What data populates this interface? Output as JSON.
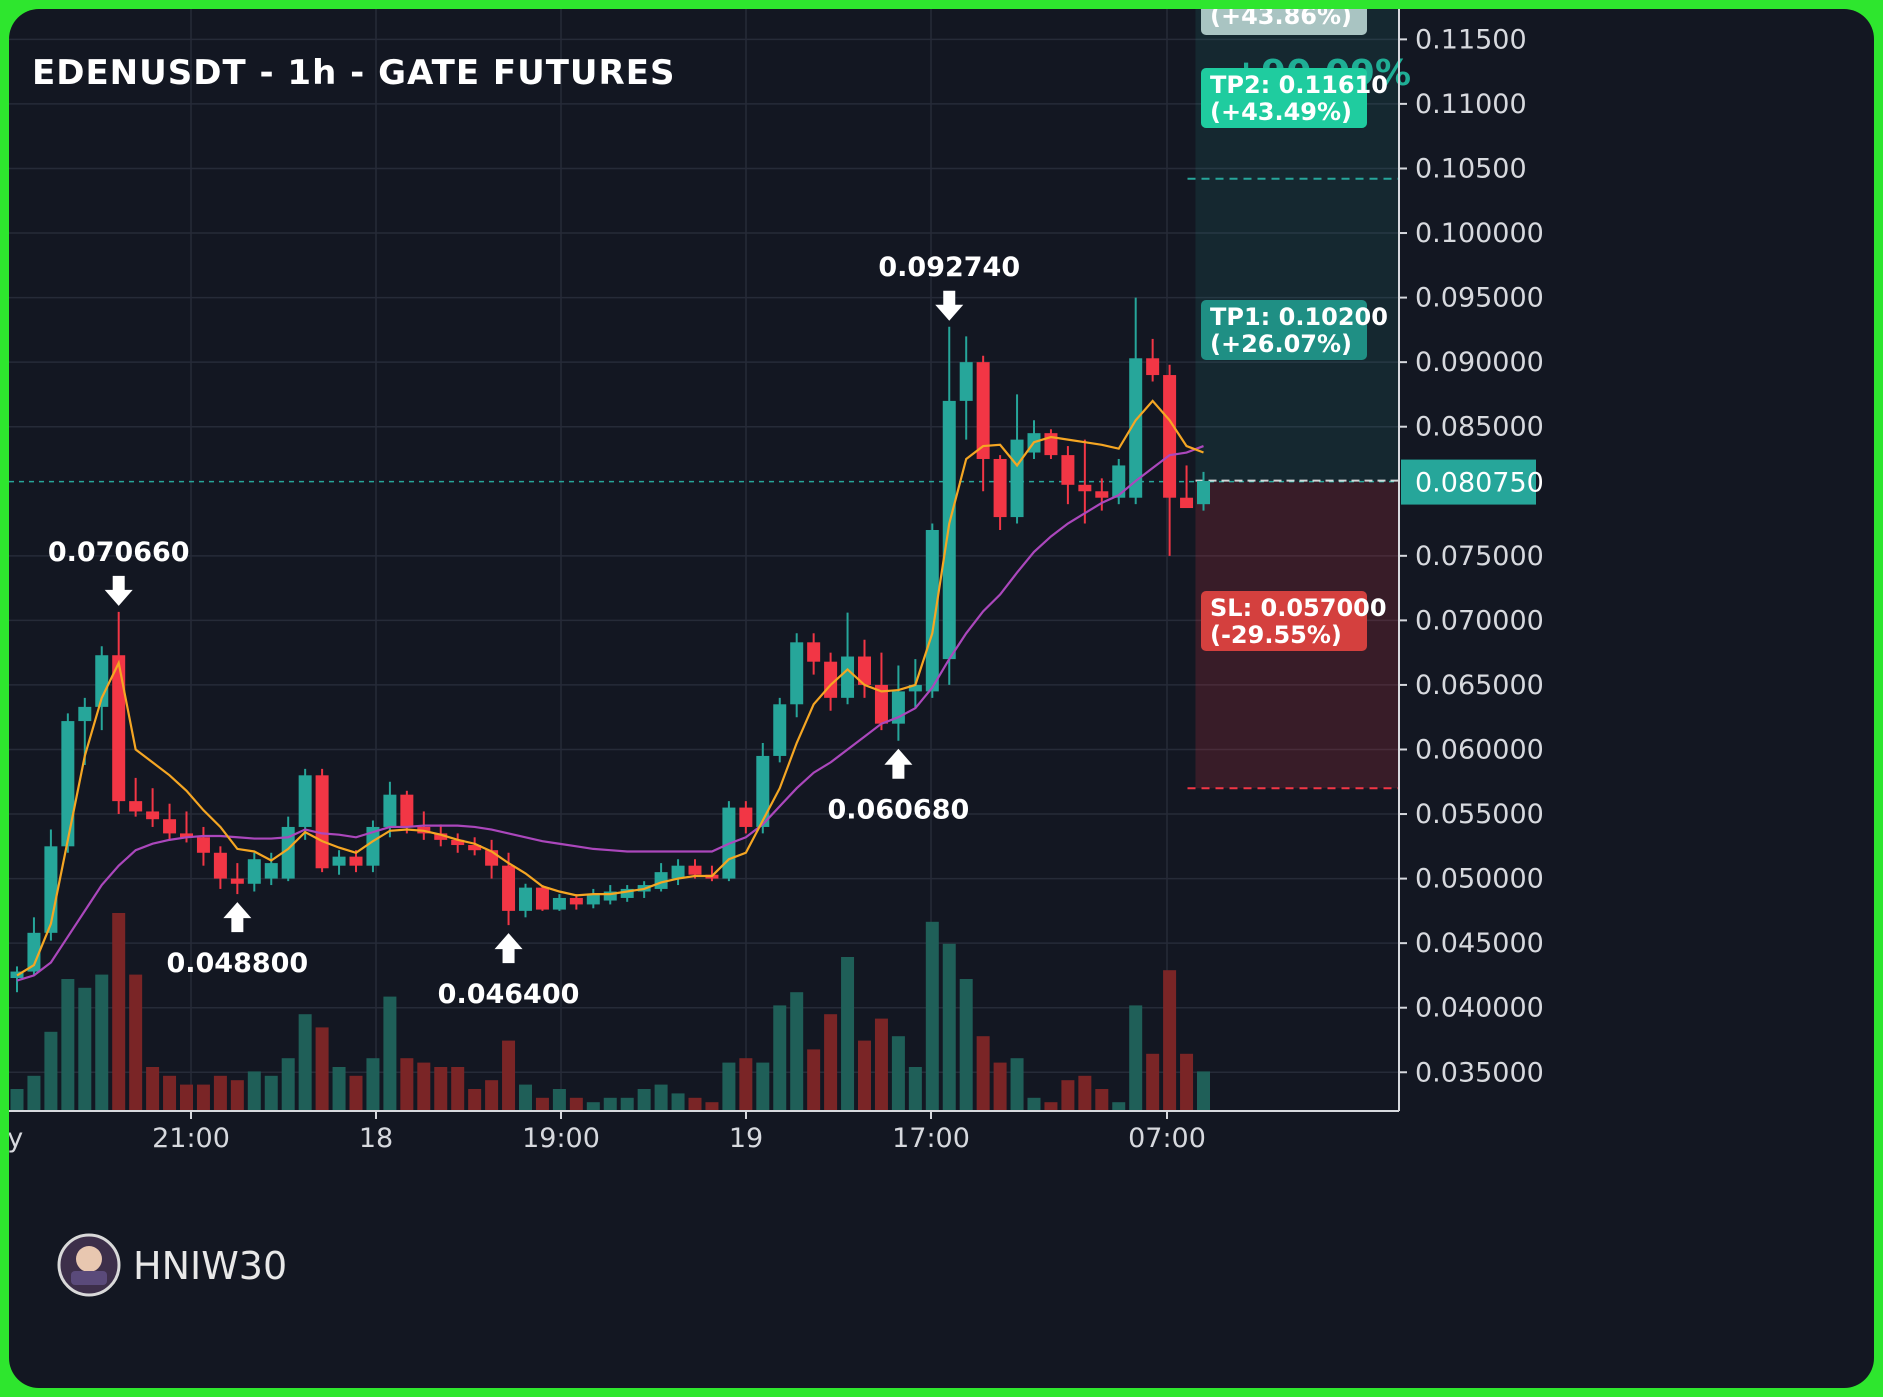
{
  "title": "EDENUSDT - 1h - GATE FUTURES",
  "watermark": "HNIW30",
  "colors": {
    "background": "#131722",
    "up": "#26a69a",
    "down": "#f23645",
    "ema_fast": "#f5a623",
    "ema_slow": "#ab47bc",
    "grid": "#262b38"
  },
  "current_price_label": "0.080750",
  "targets": [
    {
      "label": "(+43.86%)",
      "kind": "tp-partial"
    },
    {
      "label": "+90.09%",
      "kind": "tp-faded"
    },
    {
      "line1": "TP2: 0.11610",
      "line2": "(+43.49%)",
      "kind": "tp2"
    },
    {
      "line1": "TP1: 0.10200",
      "line2": "(+26.07%)",
      "kind": "tp1"
    },
    {
      "line1": "SL: 0.057000",
      "line2": "(-29.55%)",
      "kind": "sl"
    }
  ],
  "annotations": [
    {
      "label": "0.070660",
      "dir": "down",
      "candle": 6,
      "price": 0.07066
    },
    {
      "label": "0.048800",
      "dir": "up",
      "candle": 13,
      "price": 0.0488
    },
    {
      "label": "0.046400",
      "dir": "up",
      "candle": 29,
      "price": 0.0464
    },
    {
      "label": "0.092740",
      "dir": "down",
      "candle": 55,
      "price": 0.09274
    },
    {
      "label": "0.060680",
      "dir": "up",
      "candle": 52,
      "price": 0.06068
    }
  ],
  "chart_data": {
    "type": "candlestick",
    "title": "EDENUSDT - 1h - GATE FUTURES",
    "y_tick_labels": [
      "0.11500",
      "0.11000",
      "0.10500",
      "0.100000",
      "0.095000",
      "0.090000",
      "0.085000",
      "0.080750",
      "0.075000",
      "0.070000",
      "0.065000",
      "0.060000",
      "0.055000",
      "0.050000",
      "0.045000",
      "0.040000",
      "0.035000"
    ],
    "y_ticks": [
      0.115,
      0.11,
      0.105,
      0.1,
      0.095,
      0.09,
      0.085,
      0.075,
      0.07,
      0.065,
      0.06,
      0.055,
      0.05,
      0.045,
      0.04,
      0.035
    ],
    "x_tick_labels": [
      "ay",
      "21:00",
      "18",
      "19:00",
      "19",
      "17:00",
      "07:00"
    ],
    "ylim": [
      0.032,
      0.1165
    ],
    "grid": true,
    "levels": {
      "entry": 0.08075,
      "tp1": 0.102,
      "tp2": 0.1161,
      "sl": 0.057
    },
    "candles": [
      {
        "o": 0.0423,
        "h": 0.0432,
        "l": 0.0412,
        "c": 0.0428,
        "v": 5
      },
      {
        "o": 0.0428,
        "h": 0.047,
        "l": 0.0425,
        "c": 0.0458,
        "v": 8
      },
      {
        "o": 0.0458,
        "h": 0.0538,
        "l": 0.0452,
        "c": 0.0525,
        "v": 18
      },
      {
        "o": 0.0525,
        "h": 0.0628,
        "l": 0.052,
        "c": 0.0622,
        "v": 30
      },
      {
        "o": 0.0622,
        "h": 0.064,
        "l": 0.0588,
        "c": 0.0633,
        "v": 28
      },
      {
        "o": 0.0633,
        "h": 0.068,
        "l": 0.0615,
        "c": 0.0673,
        "v": 31
      },
      {
        "o": 0.0673,
        "h": 0.07066,
        "l": 0.055,
        "c": 0.056,
        "v": 45
      },
      {
        "o": 0.056,
        "h": 0.0578,
        "l": 0.0548,
        "c": 0.0552,
        "v": 31
      },
      {
        "o": 0.0552,
        "h": 0.057,
        "l": 0.054,
        "c": 0.0546,
        "v": 10
      },
      {
        "o": 0.0546,
        "h": 0.0558,
        "l": 0.053,
        "c": 0.0535,
        "v": 8
      },
      {
        "o": 0.0535,
        "h": 0.0552,
        "l": 0.0528,
        "c": 0.0532,
        "v": 6
      },
      {
        "o": 0.0532,
        "h": 0.054,
        "l": 0.051,
        "c": 0.052,
        "v": 6
      },
      {
        "o": 0.052,
        "h": 0.0525,
        "l": 0.0492,
        "c": 0.05,
        "v": 8
      },
      {
        "o": 0.05,
        "h": 0.0512,
        "l": 0.0488,
        "c": 0.0496,
        "v": 7
      },
      {
        "o": 0.0496,
        "h": 0.052,
        "l": 0.049,
        "c": 0.0515,
        "v": 9
      },
      {
        "o": 0.05,
        "h": 0.052,
        "l": 0.0495,
        "c": 0.0512,
        "v": 8
      },
      {
        "o": 0.05,
        "h": 0.0548,
        "l": 0.0498,
        "c": 0.054,
        "v": 12
      },
      {
        "o": 0.054,
        "h": 0.0585,
        "l": 0.053,
        "c": 0.058,
        "v": 22
      },
      {
        "o": 0.058,
        "h": 0.0585,
        "l": 0.0505,
        "c": 0.0508,
        "v": 19
      },
      {
        "o": 0.051,
        "h": 0.0522,
        "l": 0.0503,
        "c": 0.0517,
        "v": 10
      },
      {
        "o": 0.0517,
        "h": 0.0522,
        "l": 0.0505,
        "c": 0.051,
        "v": 8
      },
      {
        "o": 0.051,
        "h": 0.0545,
        "l": 0.0505,
        "c": 0.054,
        "v": 12
      },
      {
        "o": 0.054,
        "h": 0.0575,
        "l": 0.0532,
        "c": 0.0565,
        "v": 26
      },
      {
        "o": 0.0565,
        "h": 0.0568,
        "l": 0.0535,
        "c": 0.054,
        "v": 12
      },
      {
        "o": 0.054,
        "h": 0.0552,
        "l": 0.053,
        "c": 0.0535,
        "v": 11
      },
      {
        "o": 0.0535,
        "h": 0.0542,
        "l": 0.0525,
        "c": 0.053,
        "v": 10
      },
      {
        "o": 0.053,
        "h": 0.0535,
        "l": 0.052,
        "c": 0.0526,
        "v": 10
      },
      {
        "o": 0.0526,
        "h": 0.0532,
        "l": 0.0518,
        "c": 0.0522,
        "v": 5
      },
      {
        "o": 0.0522,
        "h": 0.053,
        "l": 0.05,
        "c": 0.051,
        "v": 7
      },
      {
        "o": 0.051,
        "h": 0.052,
        "l": 0.0464,
        "c": 0.0475,
        "v": 16
      },
      {
        "o": 0.0475,
        "h": 0.0496,
        "l": 0.047,
        "c": 0.0493,
        "v": 6
      },
      {
        "o": 0.0493,
        "h": 0.0495,
        "l": 0.0475,
        "c": 0.0476,
        "v": 3
      },
      {
        "o": 0.0476,
        "h": 0.0488,
        "l": 0.0475,
        "c": 0.0485,
        "v": 5
      },
      {
        "o": 0.0485,
        "h": 0.0488,
        "l": 0.0476,
        "c": 0.048,
        "v": 3
      },
      {
        "o": 0.048,
        "h": 0.0492,
        "l": 0.0477,
        "c": 0.0488,
        "v": 2
      },
      {
        "o": 0.0483,
        "h": 0.0495,
        "l": 0.048,
        "c": 0.049,
        "v": 3
      },
      {
        "o": 0.0485,
        "h": 0.0495,
        "l": 0.0482,
        "c": 0.0492,
        "v": 3
      },
      {
        "o": 0.049,
        "h": 0.0498,
        "l": 0.0485,
        "c": 0.0495,
        "v": 5
      },
      {
        "o": 0.0492,
        "h": 0.0512,
        "l": 0.049,
        "c": 0.0505,
        "v": 6
      },
      {
        "o": 0.05,
        "h": 0.0515,
        "l": 0.0495,
        "c": 0.051,
        "v": 4
      },
      {
        "o": 0.051,
        "h": 0.0515,
        "l": 0.05,
        "c": 0.0503,
        "v": 3
      },
      {
        "o": 0.0503,
        "h": 0.051,
        "l": 0.0498,
        "c": 0.05,
        "v": 2
      },
      {
        "o": 0.05,
        "h": 0.056,
        "l": 0.0498,
        "c": 0.0555,
        "v": 11
      },
      {
        "o": 0.0555,
        "h": 0.056,
        "l": 0.0535,
        "c": 0.054,
        "v": 12
      },
      {
        "o": 0.054,
        "h": 0.0605,
        "l": 0.0535,
        "c": 0.0595,
        "v": 11
      },
      {
        "o": 0.0595,
        "h": 0.064,
        "l": 0.059,
        "c": 0.0635,
        "v": 24
      },
      {
        "o": 0.0635,
        "h": 0.069,
        "l": 0.0625,
        "c": 0.0683,
        "v": 27
      },
      {
        "o": 0.0683,
        "h": 0.069,
        "l": 0.0658,
        "c": 0.0668,
        "v": 14
      },
      {
        "o": 0.0668,
        "h": 0.0675,
        "l": 0.063,
        "c": 0.064,
        "v": 22
      },
      {
        "o": 0.064,
        "h": 0.0706,
        "l": 0.0635,
        "c": 0.0672,
        "v": 35
      },
      {
        "o": 0.0672,
        "h": 0.0685,
        "l": 0.064,
        "c": 0.065,
        "v": 16
      },
      {
        "o": 0.065,
        "h": 0.0675,
        "l": 0.0615,
        "c": 0.062,
        "v": 21
      },
      {
        "o": 0.062,
        "h": 0.0665,
        "l": 0.06068,
        "c": 0.0645,
        "v": 17
      },
      {
        "o": 0.0645,
        "h": 0.067,
        "l": 0.0632,
        "c": 0.065,
        "v": 10
      },
      {
        "o": 0.0645,
        "h": 0.0775,
        "l": 0.064,
        "c": 0.077,
        "v": 43
      },
      {
        "o": 0.067,
        "h": 0.09274,
        "l": 0.065,
        "c": 0.087,
        "v": 38
      },
      {
        "o": 0.087,
        "h": 0.092,
        "l": 0.084,
        "c": 0.09,
        "v": 30
      },
      {
        "o": 0.09,
        "h": 0.0905,
        "l": 0.08,
        "c": 0.0825,
        "v": 17
      },
      {
        "o": 0.0825,
        "h": 0.0828,
        "l": 0.077,
        "c": 0.078,
        "v": 11
      },
      {
        "o": 0.078,
        "h": 0.0875,
        "l": 0.0775,
        "c": 0.084,
        "v": 12
      },
      {
        "o": 0.083,
        "h": 0.0855,
        "l": 0.0825,
        "c": 0.0845,
        "v": 3
      },
      {
        "o": 0.0845,
        "h": 0.0848,
        "l": 0.0825,
        "c": 0.0828,
        "v": 2
      },
      {
        "o": 0.0828,
        "h": 0.0835,
        "l": 0.079,
        "c": 0.0805,
        "v": 7
      },
      {
        "o": 0.0805,
        "h": 0.084,
        "l": 0.0775,
        "c": 0.08,
        "v": 8
      },
      {
        "o": 0.08,
        "h": 0.081,
        "l": 0.0785,
        "c": 0.0795,
        "v": 5
      },
      {
        "o": 0.0795,
        "h": 0.0825,
        "l": 0.079,
        "c": 0.082,
        "v": 2
      },
      {
        "o": 0.0795,
        "h": 0.095,
        "l": 0.079,
        "c": 0.0903,
        "v": 24
      },
      {
        "o": 0.0903,
        "h": 0.0918,
        "l": 0.0885,
        "c": 0.089,
        "v": 13
      },
      {
        "o": 0.089,
        "h": 0.0898,
        "l": 0.075,
        "c": 0.0795,
        "v": 32
      },
      {
        "o": 0.0795,
        "h": 0.082,
        "l": 0.0788,
        "c": 0.0787,
        "v": 13
      },
      {
        "o": 0.079,
        "h": 0.0815,
        "l": 0.0785,
        "c": 0.0808,
        "v": 9
      }
    ],
    "ema_fast": [
      0.0425,
      0.0433,
      0.0465,
      0.053,
      0.0595,
      0.064,
      0.0667,
      0.06,
      0.059,
      0.058,
      0.0568,
      0.0553,
      0.054,
      0.0523,
      0.0521,
      0.0514,
      0.0523,
      0.0536,
      0.0529,
      0.0524,
      0.052,
      0.0529,
      0.0537,
      0.0538,
      0.0537,
      0.0534,
      0.053,
      0.0527,
      0.0521,
      0.0512,
      0.0504,
      0.0494,
      0.049,
      0.0487,
      0.0488,
      0.0488,
      0.049,
      0.0492,
      0.0497,
      0.05,
      0.0502,
      0.0502,
      0.0515,
      0.052,
      0.0545,
      0.057,
      0.0605,
      0.0635,
      0.065,
      0.0662,
      0.065,
      0.0645,
      0.0646,
      0.065,
      0.069,
      0.0775,
      0.0825,
      0.0835,
      0.0836,
      0.082,
      0.0838,
      0.0842,
      0.084,
      0.0838,
      0.0836,
      0.0833,
      0.0855,
      0.087,
      0.0855,
      0.0835,
      0.083
    ],
    "ema_slow": [
      0.0421,
      0.0425,
      0.0435,
      0.0455,
      0.0475,
      0.0495,
      0.051,
      0.0522,
      0.0527,
      0.053,
      0.0532,
      0.0533,
      0.0533,
      0.0532,
      0.0531,
      0.0531,
      0.0532,
      0.0538,
      0.0535,
      0.0534,
      0.0532,
      0.0536,
      0.054,
      0.054,
      0.0541,
      0.0541,
      0.0541,
      0.054,
      0.0538,
      0.0535,
      0.0532,
      0.0529,
      0.0527,
      0.0525,
      0.0523,
      0.0522,
      0.0521,
      0.0521,
      0.0521,
      0.0521,
      0.0521,
      0.0521,
      0.0527,
      0.0532,
      0.0542,
      0.0556,
      0.057,
      0.0582,
      0.059,
      0.06,
      0.061,
      0.062,
      0.0625,
      0.0632,
      0.0648,
      0.067,
      0.069,
      0.0707,
      0.072,
      0.0737,
      0.0753,
      0.0765,
      0.0775,
      0.0783,
      0.0791,
      0.0797,
      0.0808,
      0.0818,
      0.0828,
      0.083,
      0.0835
    ]
  }
}
